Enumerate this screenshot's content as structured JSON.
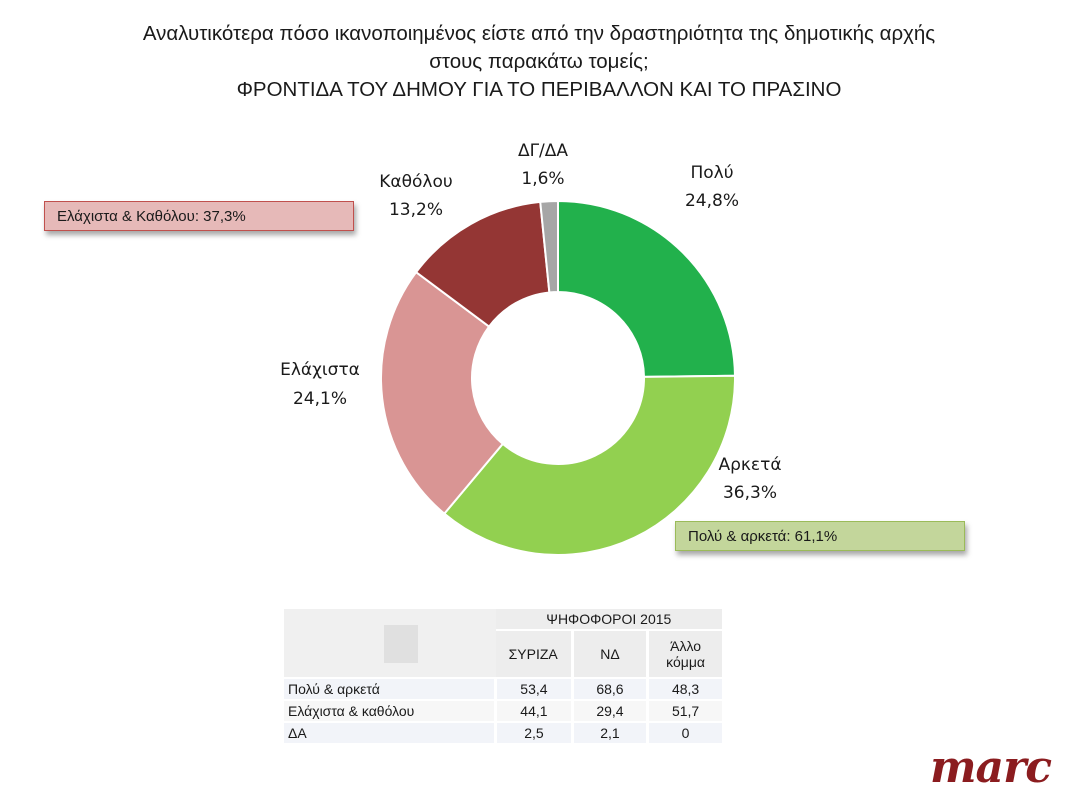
{
  "title": {
    "line1": "Αναλυτικότερα πόσο ικανοποιημένος είστε από την δραστηριότητα της δημοτικής αρχής",
    "line2": "στους παρακάτω τομείς;",
    "line3": "ΦΡΟΝΤΙΔΑ ΤΟΥ ΔΗΜΟΥ ΓΙΑ ΤΟ ΠΕΡΙΒΑΛΛΟΝ ΚΑΙ ΤΟ ΠΡΑΣΙΝΟ"
  },
  "chart_data": {
    "type": "pie",
    "variant": "donut",
    "slices": [
      {
        "label": "Πολύ",
        "value": 24.8,
        "value_label": "24,8%",
        "color": "#22b14c"
      },
      {
        "label": "Αρκετά",
        "value": 36.3,
        "value_label": "36,3%",
        "color": "#92d050"
      },
      {
        "label": "Ελάχιστα",
        "value": 24.1,
        "value_label": "24,1%",
        "color": "#d99594"
      },
      {
        "label": "Καθόλου",
        "value": 13.2,
        "value_label": "13,2%",
        "color": "#943634"
      },
      {
        "label": "ΔΓ/ΔΑ",
        "value": 1.6,
        "value_label": "1,6%",
        "color": "#a6a6a6"
      }
    ]
  },
  "summary": {
    "negative": {
      "text": "Ελάχιστα & Καθόλου: 37,3%",
      "bg": "#e6b9b8",
      "border": "#c0504d"
    },
    "positive": {
      "text": "Πολύ & αρκετά: 61,1%",
      "bg": "#c3d69b",
      "border": "#9bbb59"
    }
  },
  "table": {
    "group_header": "ΨΗΦΟΦΟΡΟΙ 2015",
    "columns": [
      "ΣΥΡΙΖΑ",
      "ΝΔ",
      "Άλλο κόμμα"
    ],
    "rows": [
      {
        "label": "Πολύ & αρκετά",
        "values": [
          "53,4",
          "68,6",
          "48,3"
        ]
      },
      {
        "label": "Ελάχιστα & καθόλου",
        "values": [
          "44,1",
          "29,4",
          "51,7"
        ]
      },
      {
        "label": "ΔΑ",
        "values": [
          "2,5",
          "2,1",
          "0"
        ]
      }
    ]
  },
  "logo": {
    "text": "marc",
    "color": "#8b1c1f"
  }
}
